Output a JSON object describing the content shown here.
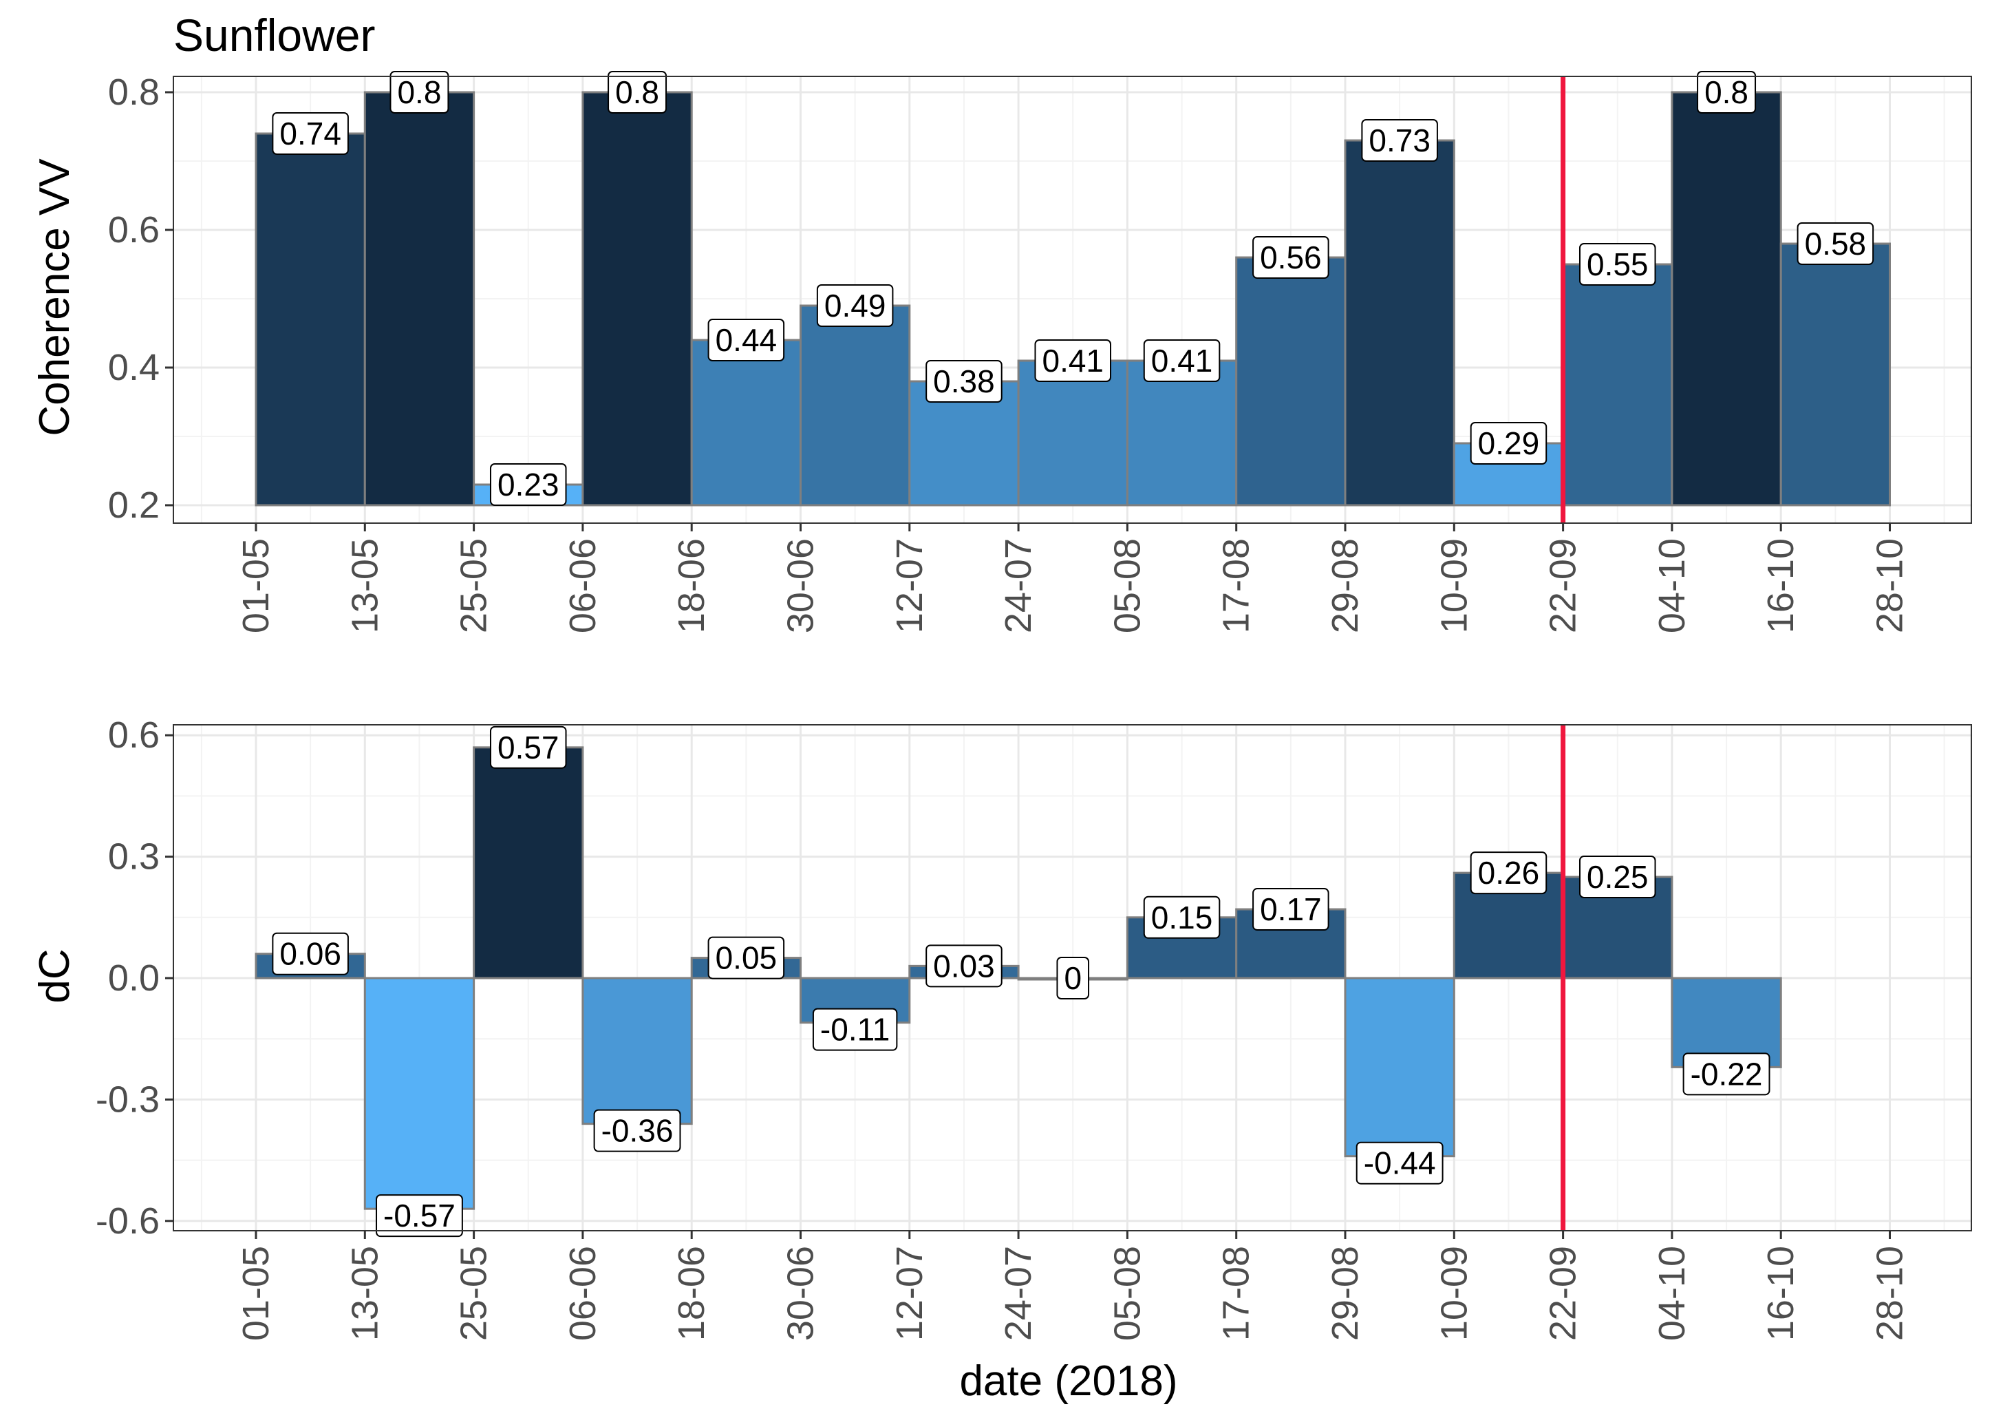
{
  "chart_data": [
    {
      "type": "bar",
      "title": "Sunflower",
      "xlabel": "",
      "ylabel": "Coherence VV",
      "ylim": [
        0.17,
        0.83
      ],
      "yticks": [
        0.2,
        0.4,
        0.6,
        0.8
      ],
      "ytick_labels": [
        "0.2",
        "0.4",
        "0.6",
        "0.8"
      ],
      "baseline": 0.2,
      "categories": [
        "01-05",
        "13-05",
        "25-05",
        "06-06",
        "18-06",
        "30-06",
        "12-07",
        "24-07",
        "05-08",
        "17-08",
        "29-08",
        "10-09",
        "22-09",
        "04-10",
        "16-10",
        "28-10"
      ],
      "values": [
        0.74,
        0.8,
        0.23,
        0.8,
        0.44,
        0.49,
        0.38,
        0.41,
        0.41,
        0.56,
        0.73,
        0.29,
        0.55,
        0.8,
        0.58
      ],
      "labels": [
        "0.74",
        "0.8",
        "0.23",
        "0.8",
        "0.44",
        "0.49",
        "0.38",
        "0.41",
        "0.41",
        "0.56",
        "0.73",
        "0.29",
        "0.55",
        "0.8",
        "0.58"
      ],
      "vline": {
        "at": "22-09",
        "color": "#f0173e"
      },
      "fill_scale": [
        "#56b1f7",
        "#132b43"
      ]
    },
    {
      "type": "bar",
      "title": "",
      "xlabel": "date (2018)",
      "ylabel": "dC",
      "ylim": [
        -0.63,
        0.63
      ],
      "yticks": [
        -0.6,
        -0.3,
        0.0,
        0.3,
        0.6
      ],
      "ytick_labels": [
        "-0.6",
        "-0.3",
        "0.0",
        "0.3",
        "0.6"
      ],
      "baseline": 0,
      "categories": [
        "01-05",
        "13-05",
        "25-05",
        "06-06",
        "18-06",
        "30-06",
        "12-07",
        "24-07",
        "05-08",
        "17-08",
        "29-08",
        "10-09",
        "22-09",
        "04-10",
        "16-10",
        "28-10"
      ],
      "values": [
        0.06,
        -0.57,
        0.57,
        -0.36,
        0.05,
        -0.11,
        0.03,
        0,
        0.15,
        0.17,
        -0.44,
        0.26,
        0.25,
        -0.22
      ],
      "labels": [
        "0.06",
        "-0.57",
        "0.57",
        "-0.36",
        "0.05",
        "-0.11",
        "0.03",
        "0",
        "0.15",
        "0.17",
        "-0.44",
        "0.26",
        "0.25",
        "-0.22"
      ],
      "vline": {
        "at": "22-09",
        "color": "#f0173e"
      },
      "fill_scale": [
        "#56b1f7",
        "#132b43"
      ]
    }
  ]
}
